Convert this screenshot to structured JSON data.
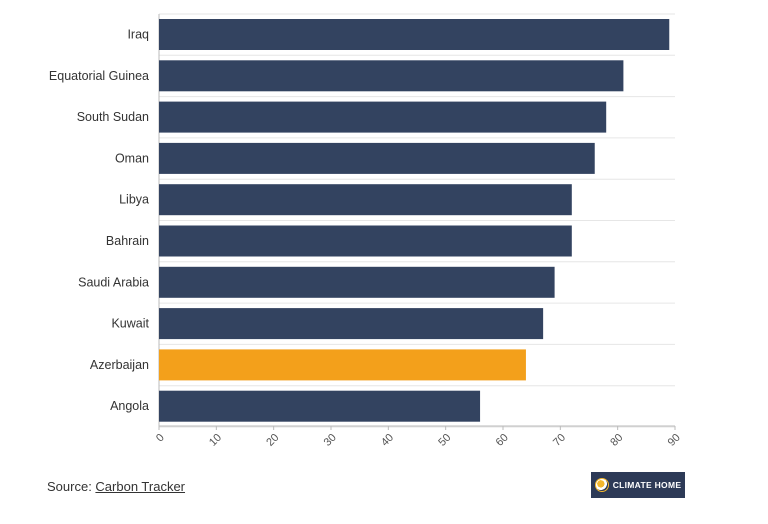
{
  "chart_data": {
    "type": "bar",
    "orientation": "horizontal",
    "categories": [
      "Iraq",
      "Equatorial Guinea",
      "South Sudan",
      "Oman",
      "Libya",
      "Bahrain",
      "Saudi Arabia",
      "Kuwait",
      "Azerbaijan",
      "Angola"
    ],
    "values": [
      89,
      81,
      78,
      76,
      72,
      72,
      69,
      67,
      64,
      56
    ],
    "highlight": "Azerbaijan",
    "colors": {
      "default": "#334360",
      "highlight": "#f3a01b"
    },
    "xlim": [
      0,
      90
    ],
    "xticks": [
      0,
      10,
      20,
      30,
      40,
      50,
      60,
      70,
      80,
      90
    ],
    "grid": true
  },
  "footer": {
    "source_prefix": "Source: ",
    "source_link": "Carbon Tracker"
  },
  "logo": {
    "text": "CLIMATE HOME"
  }
}
